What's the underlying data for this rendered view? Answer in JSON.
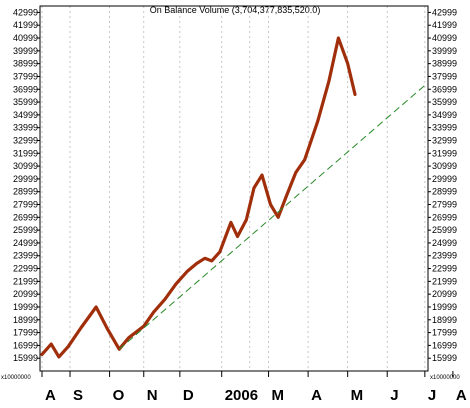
{
  "chart_data": {
    "type": "line",
    "title": "On Balance Volume (3,704,377,835,520.0)",
    "multiplier_label": "x10000000",
    "yaxis": {
      "min": 15000,
      "max": 43500,
      "ticks": [
        15999,
        16999,
        17999,
        18999,
        19999,
        20999,
        21999,
        22999,
        23999,
        24999,
        25999,
        26999,
        27999,
        28999,
        29999,
        30999,
        31999,
        32999,
        33999,
        34999,
        35999,
        36999,
        37999,
        38999,
        39999,
        40999,
        41999,
        42999
      ],
      "tick_labels": [
        "15999",
        "16999",
        "17999",
        "18999",
        "19999",
        "20999",
        "21999",
        "22999",
        "23999",
        "24999",
        "25999",
        "26999",
        "27999",
        "28999",
        "29999",
        "30999",
        "31999",
        "32999",
        "33999",
        "34999",
        "35999",
        "36999",
        "37999",
        "38999",
        "39999",
        "40999",
        "41999",
        "42999"
      ]
    },
    "xaxis": {
      "min": 0,
      "max": 100,
      "month_labels": [
        {
          "label": "A",
          "x": 0
        },
        {
          "label": "S",
          "x": 7.3
        },
        {
          "label": "O",
          "x": 17.6
        },
        {
          "label": "N",
          "x": 26.5
        },
        {
          "label": "D",
          "x": 35.9
        },
        {
          "label": "2006",
          "x": 46.8
        },
        {
          "label": "M",
          "x": 59.0
        },
        {
          "label": "A",
          "x": 69.3
        },
        {
          "label": "M",
          "x": 79.6
        },
        {
          "label": "J",
          "x": 89.9
        },
        {
          "label": "J",
          "x": 99.7
        },
        {
          "label": "A",
          "x": 107
        }
      ],
      "gridlines": [
        0,
        7.3,
        17.6,
        26.5,
        35.9,
        46.8,
        54.1,
        59.0,
        69.3,
        79.6,
        89.9,
        99.7
      ]
    },
    "series": [
      {
        "color": "#a02e0a",
        "style": "solid",
        "x": [
          0,
          2.4,
          4.4,
          6.8,
          10.2,
          14.1,
          17.0,
          20.1,
          22.6,
          26.5,
          29.1,
          32.0,
          34.9,
          37.9,
          40.3,
          42.4,
          44.2,
          46.3,
          49.2,
          50.9,
          53.2,
          55.2,
          57.3,
          59.5,
          61.5,
          63.7,
          66.1,
          68.4,
          71.8,
          74.7,
          77.2,
          79.6,
          81.5
        ],
        "y": [
          16300,
          17100,
          16100,
          16900,
          18400,
          20000,
          18300,
          16700,
          17600,
          18500,
          19600,
          20600,
          21800,
          22800,
          23400,
          23800,
          23600,
          24300,
          26600,
          25500,
          26800,
          29300,
          30300,
          28000,
          27000,
          28700,
          30500,
          31500,
          34500,
          37600,
          41000,
          39000,
          36600
        ]
      },
      {
        "color": "#2a8a2a",
        "style": "dashed",
        "x": [
          20.1,
          99.7
        ],
        "y": [
          16700,
          37300
        ]
      }
    ],
    "grid": true
  }
}
